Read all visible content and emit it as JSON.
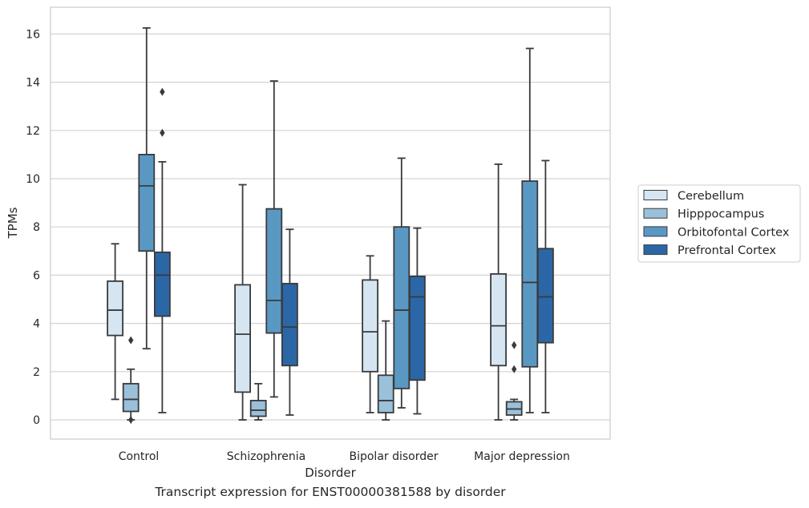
{
  "caption": "Transcript expression for ENST00000381588 by disorder",
  "chart_data": {
    "type": "box",
    "title": "",
    "xlabel": "Disorder",
    "ylabel": "TPMs",
    "ylim": [
      -0.8,
      17.1
    ],
    "yticks": [
      0,
      2,
      4,
      6,
      8,
      10,
      12,
      14,
      16
    ],
    "grid": "horizontal",
    "legend_position": "right",
    "categories": [
      "Control",
      "Schizophrenia",
      "Bipolar disorder",
      "Major depression"
    ],
    "series": [
      {
        "name": "Cerebellum",
        "color": "#d5e5f2",
        "boxes": [
          {
            "whisker_low": 0.85,
            "q1": 3.5,
            "median": 4.55,
            "q3": 5.75,
            "whisker_high": 7.3,
            "outliers": []
          },
          {
            "whisker_low": 0.0,
            "q1": 1.15,
            "median": 3.55,
            "q3": 5.6,
            "whisker_high": 9.75,
            "outliers": []
          },
          {
            "whisker_low": 0.3,
            "q1": 2.0,
            "median": 3.65,
            "q3": 5.8,
            "whisker_high": 6.8,
            "outliers": []
          },
          {
            "whisker_low": 0.0,
            "q1": 2.25,
            "median": 3.9,
            "q3": 6.05,
            "whisker_high": 10.6,
            "outliers": []
          }
        ]
      },
      {
        "name": "Hipppocampus",
        "color": "#9ac0da",
        "boxes": [
          {
            "whisker_low": 0.0,
            "q1": 0.35,
            "median": 0.85,
            "q3": 1.5,
            "whisker_high": 2.1,
            "outliers": [
              3.3,
              0.0
            ]
          },
          {
            "whisker_low": 0.0,
            "q1": 0.15,
            "median": 0.4,
            "q3": 0.8,
            "whisker_high": 1.5,
            "outliers": []
          },
          {
            "whisker_low": 0.0,
            "q1": 0.3,
            "median": 0.8,
            "q3": 1.85,
            "whisker_high": 4.1,
            "outliers": []
          },
          {
            "whisker_low": 0.0,
            "q1": 0.2,
            "median": 0.45,
            "q3": 0.75,
            "whisker_high": 0.85,
            "outliers": [
              3.1,
              2.1
            ]
          }
        ]
      },
      {
        "name": "Orbitofontal Cortex",
        "color": "#5a98c4",
        "boxes": [
          {
            "whisker_low": 2.95,
            "q1": 7.0,
            "median": 9.7,
            "q3": 11.0,
            "whisker_high": 16.25,
            "outliers": []
          },
          {
            "whisker_low": 0.95,
            "q1": 3.6,
            "median": 4.95,
            "q3": 8.75,
            "whisker_high": 14.05,
            "outliers": []
          },
          {
            "whisker_low": 0.5,
            "q1": 1.3,
            "median": 4.55,
            "q3": 8.0,
            "whisker_high": 10.85,
            "outliers": []
          },
          {
            "whisker_low": 0.3,
            "q1": 2.2,
            "median": 5.7,
            "q3": 9.9,
            "whisker_high": 15.4,
            "outliers": []
          }
        ]
      },
      {
        "name": "Prefrontal Cortex",
        "color": "#2b67a7",
        "boxes": [
          {
            "whisker_low": 0.3,
            "q1": 4.3,
            "median": 6.0,
            "q3": 6.95,
            "whisker_high": 10.7,
            "outliers": [
              13.6,
              11.9
            ]
          },
          {
            "whisker_low": 0.2,
            "q1": 2.25,
            "median": 3.85,
            "q3": 5.65,
            "whisker_high": 7.9,
            "outliers": []
          },
          {
            "whisker_low": 0.25,
            "q1": 1.65,
            "median": 5.1,
            "q3": 5.95,
            "whisker_high": 7.95,
            "outliers": []
          },
          {
            "whisker_low": 0.3,
            "q1": 3.2,
            "median": 5.1,
            "q3": 7.1,
            "whisker_high": 10.75,
            "outliers": []
          }
        ]
      }
    ]
  }
}
